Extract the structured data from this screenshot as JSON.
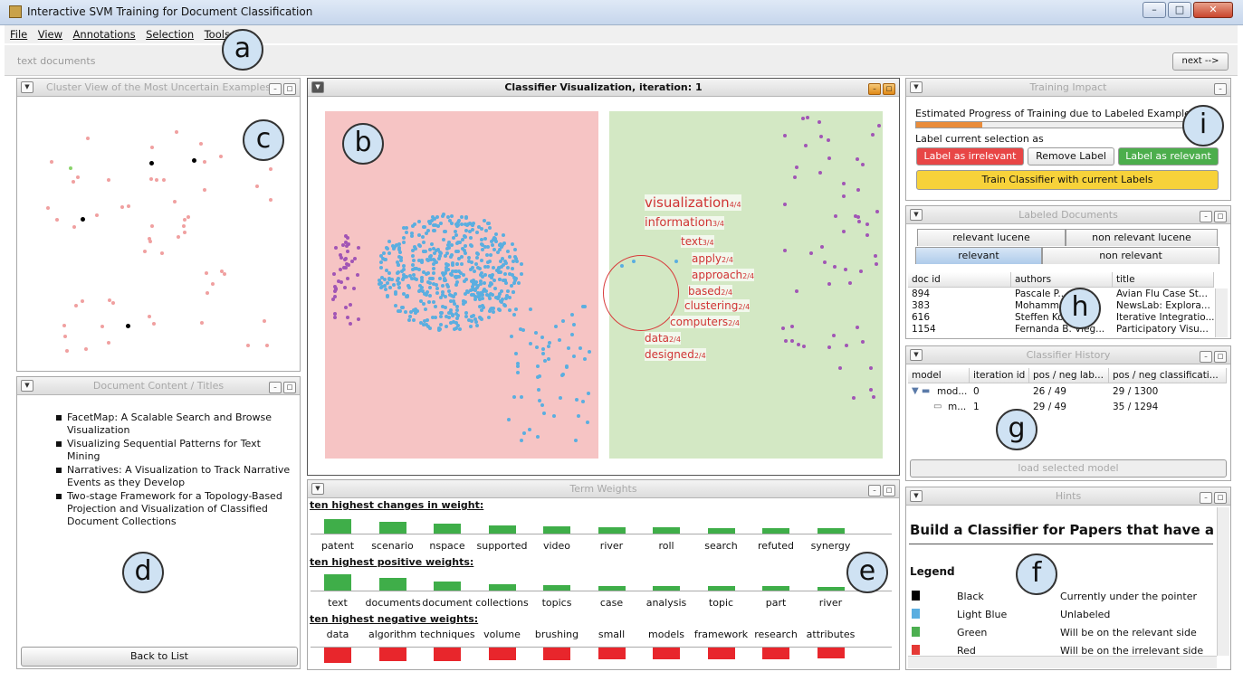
{
  "window": {
    "title": "Interactive SVM Training for Document Classification"
  },
  "menu": [
    "File",
    "View",
    "Annotations",
    "Selection",
    "Tools"
  ],
  "toolbar": {
    "breadcrumb": "text documents",
    "next_label": "next -->"
  },
  "callouts": {
    "a": "a",
    "b": "b",
    "c": "c",
    "d": "d",
    "e": "e",
    "f": "f",
    "g": "g",
    "h": "h",
    "i": "i"
  },
  "cluster_view": {
    "title": "Cluster View of the Most Uncertain Examples"
  },
  "classifier_vis": {
    "title": "Classifier Visualization, iteration: 1",
    "keywords": [
      {
        "word": "visualization",
        "count": "4/4"
      },
      {
        "word": "information",
        "count": "3/4"
      },
      {
        "word": "text",
        "count": "3/4"
      },
      {
        "word": "apply",
        "count": "2/4"
      },
      {
        "word": "approach",
        "count": "2/4"
      },
      {
        "word": "based",
        "count": "2/4"
      },
      {
        "word": "clustering",
        "count": "2/4"
      },
      {
        "word": "computers",
        "count": "2/4"
      },
      {
        "word": "data",
        "count": "2/4"
      },
      {
        "word": "designed",
        "count": "2/4"
      }
    ]
  },
  "document_content": {
    "title": "Document Content / Titles",
    "items": [
      "FacetMap: A Scalable Search and Browse Visualization",
      "Visualizing Sequential Patterns for Text Mining",
      "Narratives: A Visualization to Track Narrative Events as they Develop",
      "Two-stage Framework for a Topology-Based Projection and Visualization of Classified Document Collections"
    ],
    "back_label": "Back to List"
  },
  "term_weights": {
    "title": "Term Weights",
    "changes_header": "ten highest changes in weight:",
    "changes": [
      {
        "term": "patent",
        "w": 0.9
      },
      {
        "term": "scenario",
        "w": 0.7
      },
      {
        "term": "nspace",
        "w": 0.6
      },
      {
        "term": "supported",
        "w": 0.5
      },
      {
        "term": "video",
        "w": 0.45
      },
      {
        "term": "river",
        "w": 0.4
      },
      {
        "term": "roll",
        "w": 0.38
      },
      {
        "term": "search",
        "w": 0.36
      },
      {
        "term": "refuted",
        "w": 0.34
      },
      {
        "term": "synergy",
        "w": 0.32
      }
    ],
    "positive_header": "ten highest positive weights:",
    "positive": [
      {
        "term": "text",
        "w": 1.0
      },
      {
        "term": "documents",
        "w": 0.8
      },
      {
        "term": "document",
        "w": 0.55
      },
      {
        "term": "collections",
        "w": 0.4
      },
      {
        "term": "topics",
        "w": 0.35
      },
      {
        "term": "case",
        "w": 0.3
      },
      {
        "term": "analysis",
        "w": 0.3
      },
      {
        "term": "topic",
        "w": 0.28
      },
      {
        "term": "part",
        "w": 0.25
      },
      {
        "term": "river",
        "w": 0.22
      }
    ],
    "negative_header": "ten highest negative weights:",
    "negative": [
      {
        "term": "data",
        "w": 1.0
      },
      {
        "term": "algorithm",
        "w": 0.9
      },
      {
        "term": "techniques",
        "w": 0.9
      },
      {
        "term": "volume",
        "w": 0.85
      },
      {
        "term": "brushing",
        "w": 0.85
      },
      {
        "term": "small",
        "w": 0.8
      },
      {
        "term": "models",
        "w": 0.8
      },
      {
        "term": "framework",
        "w": 0.75
      },
      {
        "term": "research",
        "w": 0.75
      },
      {
        "term": "attributes",
        "w": 0.7
      }
    ]
  },
  "training_impact": {
    "title": "Training Impact",
    "progress_label": "Estimated Progress of Training due to Labeled Examples",
    "progress": 0.22,
    "label_prompt": "Label current selection as",
    "irrelevant_label": "Label as irrelevant",
    "remove_label": "Remove Label",
    "relevant_label": "Label as relevant",
    "train_label": "Train Classifier with current Labels"
  },
  "labeled_docs": {
    "title": "Labeled Documents",
    "tabs_top": [
      "relevant lucene",
      "non relevant lucene"
    ],
    "tabs_bottom": [
      "relevant",
      "non relevant"
    ],
    "columns": [
      "doc id",
      "authors",
      "title"
    ],
    "rows": [
      [
        "894",
        "Pascale P...",
        "Avian Flu Case St..."
      ],
      [
        "383",
        "Mohamm...",
        "NewsLab: Explora..."
      ],
      [
        "616",
        "Steffen Koc...",
        "Iterative Integratio..."
      ],
      [
        "1154",
        "Fernanda B. Vieg...",
        "Participatory Visu..."
      ]
    ]
  },
  "classifier_history": {
    "title": "Classifier History",
    "columns": [
      "model",
      "iteration id",
      "pos / neg lab...",
      "pos / neg classificati..."
    ],
    "rows": [
      [
        "mod...",
        "0",
        "26 / 49",
        "29 / 1300"
      ],
      [
        "m...",
        "1",
        "29 / 49",
        "35 / 1294"
      ]
    ],
    "load_label": "load selected model"
  },
  "hints": {
    "title": "Hints",
    "heading": "Build a Classifier for Papers that have a T",
    "legend_title": "Legend",
    "legend": [
      {
        "name": "Black",
        "desc": "Currently under the pointer",
        "color": "#000000"
      },
      {
        "name": "Light Blue",
        "desc": "Unlabeled",
        "color": "#5aaee0"
      },
      {
        "name": "Green",
        "desc": "Will be on the relevant side",
        "color": "#4caf50"
      },
      {
        "name": "Red",
        "desc": "Will be on the irrelevant side",
        "color": "#e53935"
      }
    ]
  },
  "colors": {
    "irrelevant_bg": "#f6c4c4",
    "relevant_bg": "#d3e8c4",
    "unlabeled": "#5aaee0",
    "purple": "#a155b5",
    "pink": "#f0a0a0",
    "green_bar": "#3fae49",
    "red_bar": "#e8262c",
    "train": "#f7d23a"
  }
}
